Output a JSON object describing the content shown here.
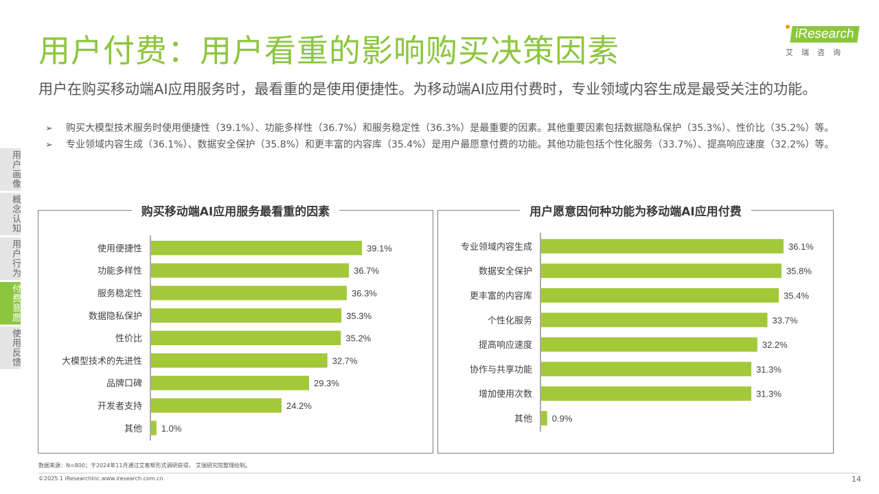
{
  "header": {
    "title": "用户付费：用户看重的影响购买决策因素",
    "logo_text": "iResearch",
    "logo_cn": "艾瑞咨询"
  },
  "subtitle": "用户在购买移动端AI应用服务时，最看重的是使用便捷性。为移动端AI应用付费时，专业领域内容生成是最受关注的功能。",
  "bullets": [
    "购买大模型技术服务时使用便捷性（39.1%）、功能多样性（36.7%）和服务稳定性（36.3%）是最重要的因素。其他重要因素包括数据隐私保护（35.3%）、性价比（35.2%）等。",
    "专业领域内容生成（36.1%）、数据安全保护（35.8%）和更丰富的内容库（35.4%）是用户最愿意付费的功能。其他功能包括个性化服务（33.7%）、提高响应速度（32.2%）等。"
  ],
  "bullet_mark": "➢",
  "sidenav": [
    {
      "label": "用户画像",
      "active": false
    },
    {
      "label": "概念认知",
      "active": false
    },
    {
      "label": "用户行为",
      "active": false
    },
    {
      "label": "付费意愿",
      "active": true
    },
    {
      "label": "使用反馈",
      "active": false
    }
  ],
  "colors": {
    "accent": "#8cc63f",
    "bar": "#a3c93a"
  },
  "chart_data": [
    {
      "type": "bar",
      "orientation": "horizontal",
      "title": "购买移动端AI应用服务最看重的因素",
      "categories": [
        "使用便捷性",
        "功能多样性",
        "服务稳定性",
        "数据隐私保护",
        "性价比",
        "大模型技术的先进性",
        "品牌口碑",
        "开发者支持",
        "其他"
      ],
      "values": [
        39.1,
        36.7,
        36.3,
        35.3,
        35.2,
        32.7,
        29.3,
        24.2,
        1.0
      ],
      "value_labels": [
        "39.1%",
        "36.7%",
        "36.3%",
        "35.3%",
        "35.2%",
        "32.7%",
        "29.3%",
        "24.2%",
        "1.0%"
      ],
      "unit": "%",
      "xlim": [
        0,
        39.1
      ]
    },
    {
      "type": "bar",
      "orientation": "horizontal",
      "title": "用户愿意因何种功能为移动端AI应用付费",
      "categories": [
        "专业领域内容生成",
        "数据安全保护",
        "更丰富的内容库",
        "个性化服务",
        "提高响应速度",
        "协作与共享功能",
        "增加使用次数",
        "其他"
      ],
      "values": [
        36.1,
        35.8,
        35.4,
        33.7,
        32.2,
        31.3,
        31.3,
        0.9
      ],
      "value_labels": [
        "36.1%",
        "35.8%",
        "35.4%",
        "33.7%",
        "32.2%",
        "31.3%",
        "31.3%",
        "0.9%"
      ],
      "unit": "%",
      "xlim": [
        0,
        36.1
      ]
    }
  ],
  "footer": {
    "source": "数据来源：N=800；于2024年11月通过艾客帮形式调研获得， 艾瑞研究院整理绘制。",
    "copyright": "©2025.1 iResearchInc.www.iresearch.com.cn",
    "page": "14"
  }
}
